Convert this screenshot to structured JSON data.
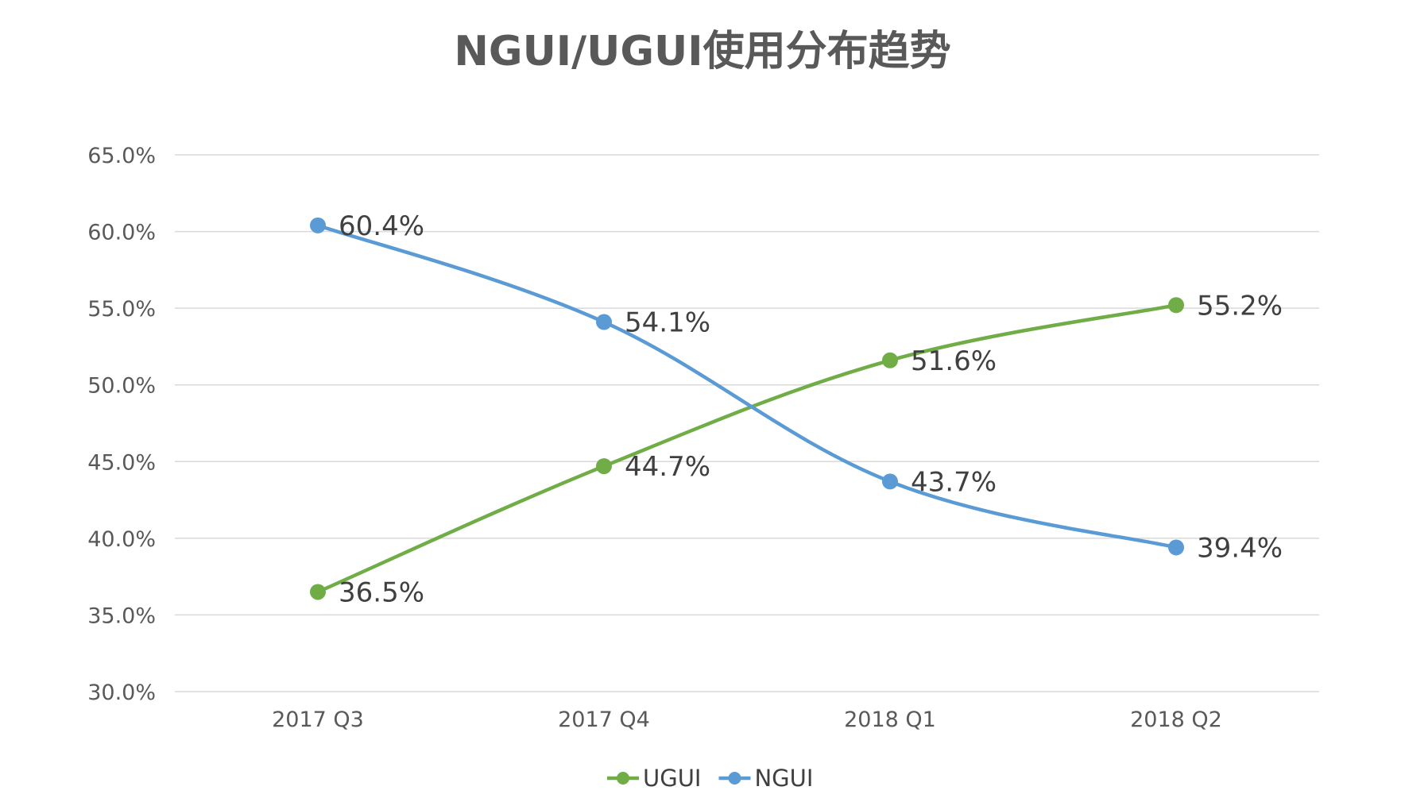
{
  "chart_data": {
    "type": "line",
    "title": "NGUI/UGUI使用分布趋势",
    "categories": [
      "2017 Q3",
      "2017 Q4",
      "2018 Q1",
      "2018 Q2"
    ],
    "series": [
      {
        "name": "UGUI",
        "color": "#70ad47",
        "values": [
          36.5,
          44.7,
          51.6,
          55.2
        ],
        "labels": [
          "36.5%",
          "44.7%",
          "51.6%",
          "55.2%"
        ]
      },
      {
        "name": "NGUI",
        "color": "#5b9bd5",
        "values": [
          60.4,
          54.1,
          43.7,
          39.4
        ],
        "labels": [
          "60.4%",
          "54.1%",
          "43.7%",
          "39.4%"
        ]
      }
    ],
    "y_ticks": [
      "30.0%",
      "35.0%",
      "40.0%",
      "45.0%",
      "50.0%",
      "55.0%",
      "60.0%",
      "65.0%"
    ],
    "ylim": [
      30,
      65
    ],
    "grid": true,
    "smooth": true,
    "legend_position": "bottom-center",
    "xlabel": "",
    "ylabel": ""
  }
}
